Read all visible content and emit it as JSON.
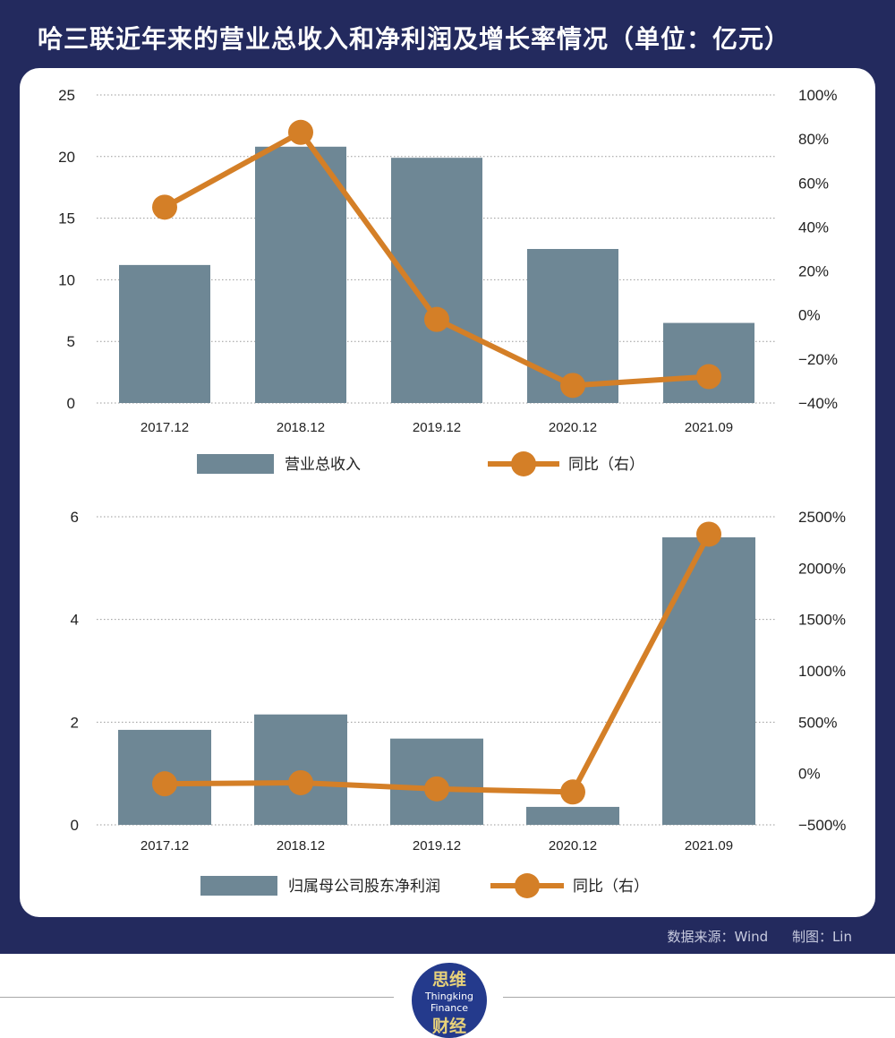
{
  "title": "哈三联近年来的营业总收入和净利润及增长率情况（单位：亿元）",
  "source_label": "数据来源：Wind",
  "maker_label": "制图：Lin",
  "logo": {
    "cn_top": "思维",
    "en_line1": "Thingking",
    "en_line2": "Finance",
    "cn_bottom": "财经"
  },
  "colors": {
    "frame": "#232a5e",
    "bar": "#6e8795",
    "line": "#d47f27",
    "grid": "#999999"
  },
  "chart_data": [
    {
      "type": "bar",
      "categories": [
        "2017.12",
        "2018.12",
        "2019.12",
        "2020.12",
        "2021.09"
      ],
      "series": [
        {
          "name": "营业总收入",
          "kind": "bar",
          "axis": "left",
          "values": [
            11.2,
            20.8,
            19.9,
            12.5,
            6.5
          ]
        },
        {
          "name": "同比（右）",
          "kind": "line",
          "axis": "right",
          "values": [
            49,
            83,
            -2,
            -32,
            -28
          ]
        }
      ],
      "left_axis": {
        "min": 0,
        "max": 25,
        "ticks": [
          0,
          5,
          10,
          15,
          20,
          25
        ],
        "tick_labels": [
          "0",
          "5",
          "10",
          "15",
          "20",
          "25"
        ]
      },
      "right_axis": {
        "min": -40,
        "max": 100,
        "ticks": [
          -40,
          -20,
          0,
          20,
          40,
          60,
          80,
          100
        ],
        "tick_labels": [
          "−40%",
          "−20%",
          "0%",
          "20%",
          "40%",
          "60%",
          "80%",
          "100%"
        ]
      },
      "legend": [
        "营业总收入",
        "同比（右）"
      ]
    },
    {
      "type": "bar",
      "categories": [
        "2017.12",
        "2018.12",
        "2019.12",
        "2020.12",
        "2021.09"
      ],
      "series": [
        {
          "name": "归属母公司股东净利润",
          "kind": "bar",
          "axis": "left",
          "values": [
            1.85,
            2.15,
            1.68,
            0.35,
            5.6
          ]
        },
        {
          "name": "同比（右）",
          "kind": "line",
          "axis": "right",
          "values": [
            -100,
            -90,
            -150,
            -180,
            2330
          ]
        }
      ],
      "left_axis": {
        "min": 0,
        "max": 6,
        "ticks": [
          0,
          2,
          4,
          6
        ],
        "tick_labels": [
          "0",
          "2",
          "4",
          "6"
        ]
      },
      "right_axis": {
        "min": -500,
        "max": 2500,
        "ticks": [
          -500,
          0,
          500,
          1000,
          1500,
          2000,
          2500
        ],
        "tick_labels": [
          "−500%",
          "0%",
          "500%",
          "1000%",
          "1500%",
          "2000%",
          "2500%"
        ]
      },
      "legend": [
        "归属母公司股东净利润",
        "同比（右）"
      ]
    }
  ]
}
